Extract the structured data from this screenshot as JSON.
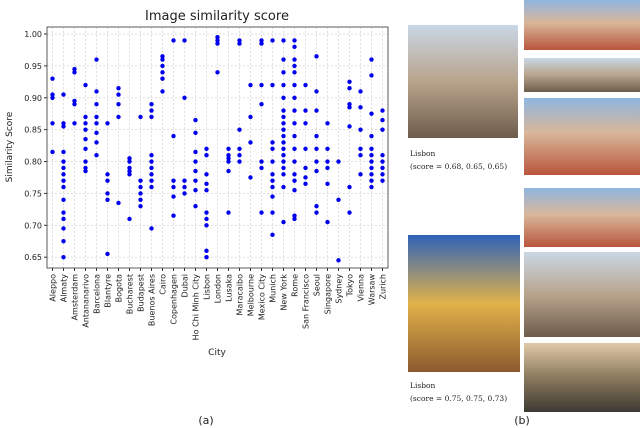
{
  "chart_data": {
    "type": "strip",
    "title": "Image similarity score",
    "x_label": "City",
    "y_label": "Similarity Score",
    "categories": [
      "Aleppo",
      "Almaty",
      "Amsterdam",
      "Antananarivo",
      "Barcelona",
      "Blantyre",
      "Bogota",
      "Bucharest",
      "Budapest",
      "Buenos Aires",
      "Cairo",
      "Copenhagen",
      "Dubai",
      "Ho Chi Minh City",
      "Lisbon",
      "London",
      "Lusaka",
      "Maracaibo",
      "Melbourne",
      "Mexico City",
      "Munich",
      "New York",
      "Rome",
      "San Francisco",
      "Seoul",
      "Singapore",
      "Sydney",
      "Tokyo",
      "Vienna",
      "Warsaw",
      "Zurich"
    ],
    "values": [
      [
        0.93,
        0.905,
        0.9,
        0.86,
        0.815
      ],
      [
        0.905,
        0.86,
        0.855,
        0.815,
        0.8,
        0.79,
        0.78,
        0.77,
        0.76,
        0.74,
        0.72,
        0.71,
        0.695,
        0.675,
        0.65
      ],
      [
        0.945,
        0.94,
        0.895,
        0.89,
        0.86
      ],
      [
        0.92,
        0.87,
        0.86,
        0.85,
        0.835,
        0.82,
        0.8,
        0.79,
        0.785
      ],
      [
        0.96,
        0.91,
        0.89,
        0.87,
        0.86,
        0.845,
        0.83,
        0.81
      ],
      [
        0.86,
        0.78,
        0.77,
        0.75,
        0.74,
        0.655
      ],
      [
        0.915,
        0.905,
        0.89,
        0.87,
        0.735
      ],
      [
        0.805,
        0.8,
        0.79,
        0.785,
        0.78,
        0.71
      ],
      [
        0.87,
        0.77,
        0.76,
        0.75,
        0.74,
        0.73
      ],
      [
        0.89,
        0.88,
        0.87,
        0.81,
        0.8,
        0.79,
        0.78,
        0.77,
        0.76,
        0.695
      ],
      [
        0.965,
        0.96,
        0.95,
        0.94,
        0.93,
        0.91
      ],
      [
        0.99,
        0.84,
        0.77,
        0.76,
        0.745,
        0.715
      ],
      [
        0.99,
        0.9,
        0.77,
        0.76,
        0.75
      ],
      [
        0.865,
        0.845,
        0.815,
        0.8,
        0.785,
        0.77,
        0.755,
        0.73
      ],
      [
        0.82,
        0.81,
        0.78,
        0.765,
        0.755,
        0.72,
        0.71,
        0.7,
        0.66,
        0.65
      ],
      [
        0.995,
        0.99,
        0.985,
        0.94
      ],
      [
        0.82,
        0.81,
        0.805,
        0.8,
        0.785,
        0.72
      ],
      [
        0.99,
        0.985,
        0.85,
        0.82,
        0.81,
        0.8
      ],
      [
        0.92,
        0.87,
        0.83,
        0.775
      ],
      [
        0.99,
        0.985,
        0.92,
        0.89,
        0.8,
        0.79,
        0.72
      ],
      [
        0.99,
        0.92,
        0.83,
        0.82,
        0.8,
        0.78,
        0.77,
        0.76,
        0.745,
        0.72,
        0.685
      ],
      [
        0.99,
        0.96,
        0.94,
        0.92,
        0.9,
        0.88,
        0.87,
        0.86,
        0.85,
        0.84,
        0.83,
        0.82,
        0.81,
        0.8,
        0.79,
        0.78,
        0.76,
        0.705
      ],
      [
        0.99,
        0.98,
        0.96,
        0.95,
        0.94,
        0.92,
        0.9,
        0.88,
        0.86,
        0.84,
        0.82,
        0.8,
        0.78,
        0.77,
        0.755,
        0.715,
        0.71
      ],
      [
        0.92,
        0.88,
        0.86,
        0.82,
        0.79,
        0.775,
        0.765
      ],
      [
        0.965,
        0.91,
        0.88,
        0.84,
        0.82,
        0.8,
        0.785,
        0.73,
        0.72
      ],
      [
        0.86,
        0.82,
        0.8,
        0.79,
        0.765,
        0.705
      ],
      [
        0.8,
        0.74,
        0.645
      ],
      [
        0.925,
        0.915,
        0.89,
        0.885,
        0.855,
        0.76,
        0.72
      ],
      [
        0.91,
        0.885,
        0.85,
        0.82,
        0.81,
        0.78
      ],
      [
        0.96,
        0.935,
        0.875,
        0.84,
        0.82,
        0.81,
        0.8,
        0.79,
        0.78,
        0.77,
        0.76
      ],
      [
        0.88,
        0.865,
        0.85,
        0.81,
        0.8,
        0.79,
        0.78,
        0.77
      ]
    ],
    "color": "#0000ee",
    "ylim": [
      0.633,
      1.011
    ],
    "yticks": [
      0.65,
      {
        "value": 0.7,
        "label": "0.70"
      },
      0.75,
      {
        "value": 0.8,
        "label": "0.80"
      },
      0.85,
      {
        "value": 0.9,
        "label": "0.90"
      },
      0.95,
      {
        "value": 1.0,
        "label": "1.00"
      }
    ],
    "grid": true
  },
  "panel_a": {
    "label": "(a)"
  },
  "panel_b": {
    "label": "(b)",
    "groups": [
      {
        "city": "Lisbon",
        "score_text": "(score = 0.68, 0.65, 0.65)"
      },
      {
        "city": "Lisbon",
        "score_text": "(score = 0.75, 0.75, 0.73)"
      }
    ]
  }
}
